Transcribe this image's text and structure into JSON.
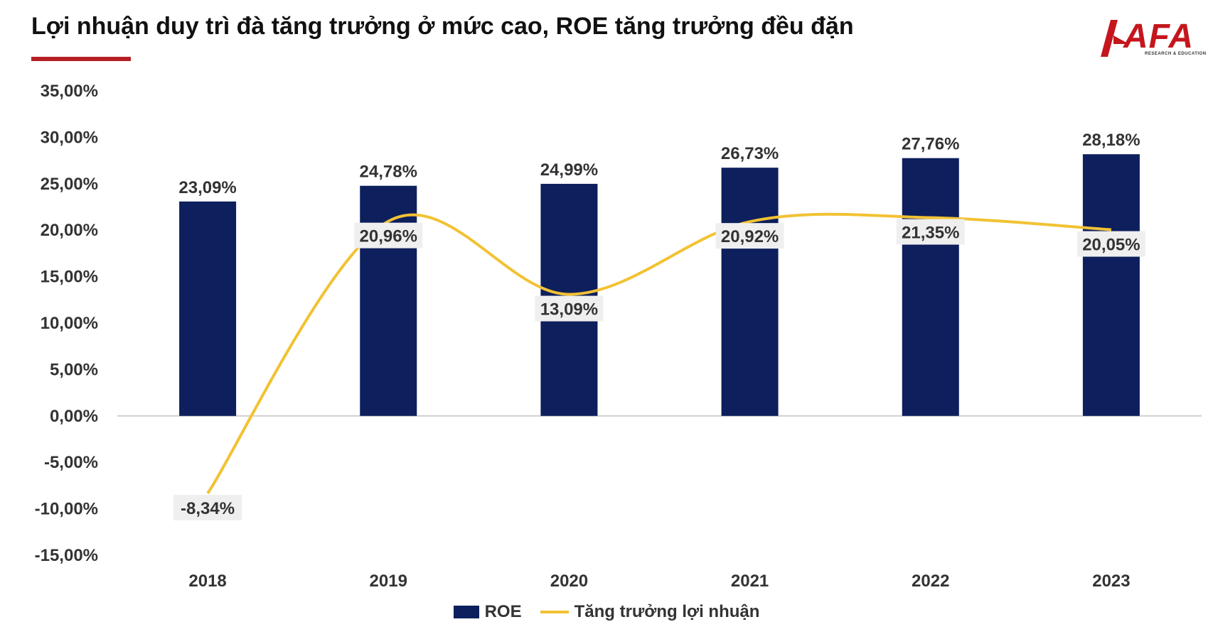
{
  "title": "Lợi nhuận duy trì đà tăng trưởng ở mức cao, ROE tăng trưởng đều đặn",
  "logo": {
    "text": "AFA",
    "subtext": "RESEARCH & EDUCATION"
  },
  "colors": {
    "bar": "#0d1f5c",
    "line": "#f2c233",
    "accent": "#b51f24",
    "label_bg": "#efefef"
  },
  "chart_data": {
    "type": "bar",
    "categories": [
      "2018",
      "2019",
      "2020",
      "2021",
      "2022",
      "2023"
    ],
    "series": [
      {
        "name": "ROE",
        "type": "bar",
        "values": [
          23.09,
          24.78,
          24.99,
          26.73,
          27.76,
          28.18
        ],
        "labels": [
          "23,09%",
          "24,78%",
          "24,99%",
          "26,73%",
          "27,76%",
          "28,18%"
        ]
      },
      {
        "name": "Tăng trưởng lợi nhuận",
        "type": "line",
        "smooth": true,
        "values": [
          -8.34,
          20.96,
          13.09,
          20.92,
          21.35,
          20.05
        ],
        "labels": [
          "-8,34%",
          "20,96%",
          "13,09%",
          "20,92%",
          "21,35%",
          "20,05%"
        ]
      }
    ],
    "ylim": [
      -15,
      35
    ],
    "yticks": [
      35,
      30,
      25,
      20,
      15,
      10,
      5,
      0,
      -5,
      -10,
      -15
    ],
    "ytick_labels": [
      "35,00%",
      "30,00%",
      "25,00%",
      "20,00%",
      "15,00%",
      "10,00%",
      "5,00%",
      "0,00%",
      "-5,00%",
      "-10,00%",
      "-15,00%"
    ],
    "legend": "bottom",
    "grid": false
  }
}
